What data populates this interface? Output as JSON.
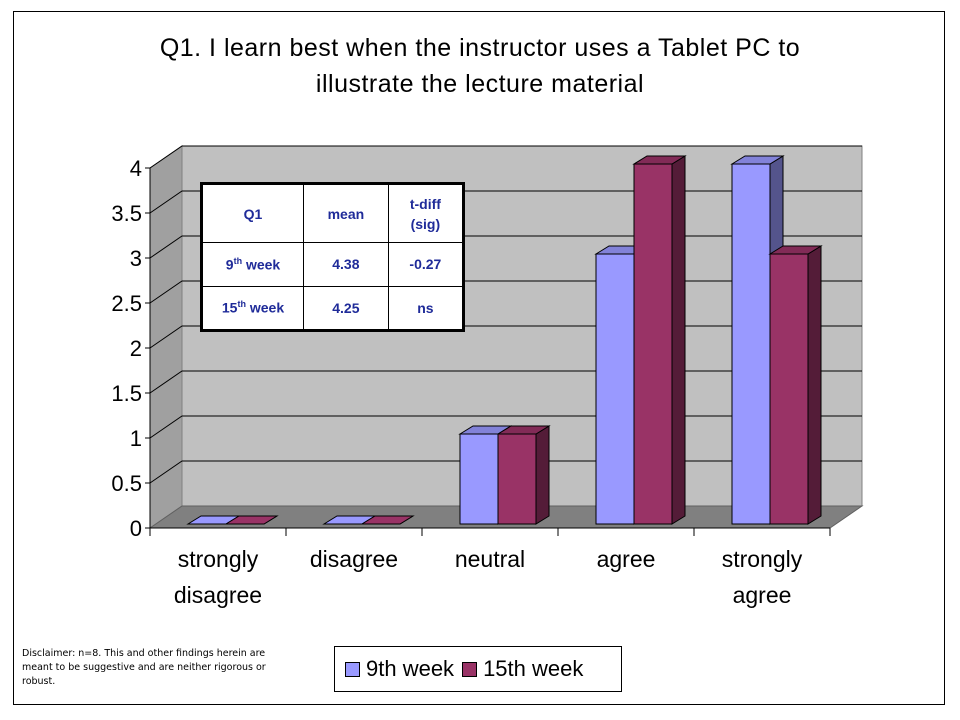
{
  "chart_data": {
    "type": "bar",
    "title_line1": "Q1.  I learn best when the instructor uses a Tablet PC to",
    "title_line2": "illustrate the lecture material",
    "categories": [
      [
        "strongly",
        "disagree"
      ],
      [
        "disagree"
      ],
      [
        "neutral"
      ],
      [
        "agree"
      ],
      [
        "strongly",
        "agree"
      ]
    ],
    "series": [
      {
        "name": "9th week",
        "color": "#9999ff",
        "values": [
          0,
          0,
          1,
          3,
          4
        ]
      },
      {
        "name": "15th week",
        "color": "#993366",
        "values": [
          0,
          0,
          1,
          4,
          3
        ]
      }
    ],
    "ylim": [
      0,
      4
    ],
    "yticks": [
      "0",
      "0.5",
      "1",
      "1.5",
      "2",
      "2.5",
      "3",
      "3.5",
      "4"
    ],
    "grid": true,
    "legend_position": "bottom"
  },
  "stats_table": {
    "header": [
      "Q1",
      "mean",
      "t-diff",
      "(sig)"
    ],
    "row1": {
      "label_num": "9",
      "label_sup": "th",
      "label_rest": " week",
      "mean": "4.38",
      "tdiff": "-0.27"
    },
    "row2": {
      "label_num": "15",
      "label_sup": "th",
      "label_rest": " week",
      "mean": "4.25",
      "tdiff": "ns"
    }
  },
  "legend": {
    "item1": "9th week",
    "item2": "15th week"
  },
  "disclaimer": "Disclaimer:  n=8.  This and other findings herein are meant to be suggestive and are neither rigorous or robust."
}
